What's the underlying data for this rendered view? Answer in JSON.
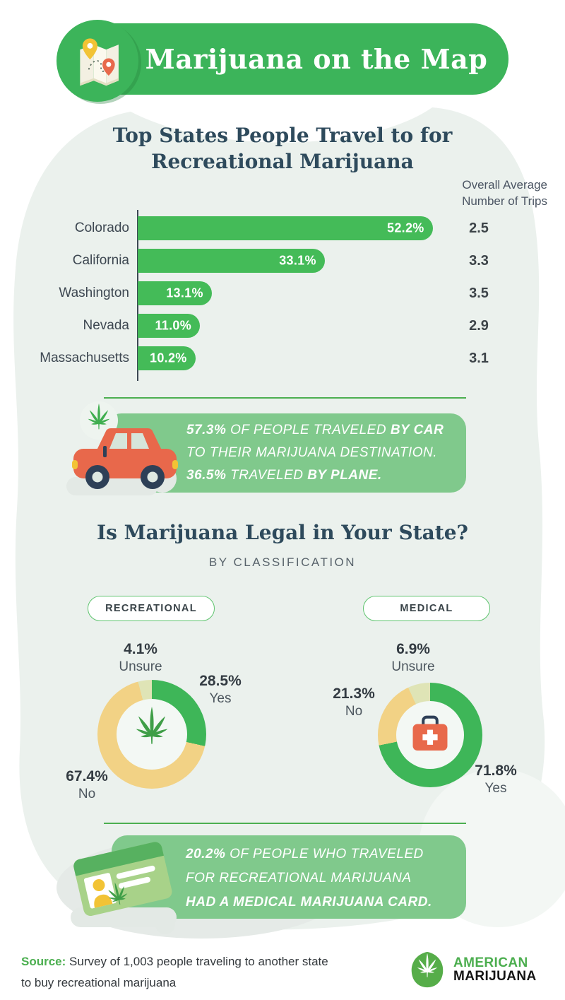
{
  "header": {
    "title": "Marijuana on the Map"
  },
  "travel_chart": {
    "title_lines": [
      "Top States People Travel to for",
      "Recreational Marijuana"
    ],
    "trips_header_lines": [
      "Overall Average",
      "Number of Trips"
    ]
  },
  "chart_data": [
    {
      "type": "bar",
      "title": "Top States People Travel to for Recreational Marijuana",
      "categories": [
        "Colorado",
        "California",
        "Washington",
        "Nevada",
        "Massachusetts"
      ],
      "values": [
        52.2,
        33.1,
        13.1,
        11.0,
        10.2
      ],
      "value_labels": [
        "52.2%",
        "33.1%",
        "13.1%",
        "11.0%",
        "10.2%"
      ],
      "secondary_column": {
        "header": "Overall Average Number of Trips",
        "values": [
          "2.5",
          "3.3",
          "3.5",
          "2.9",
          "3.1"
        ]
      },
      "xlabel": "",
      "ylabel": "",
      "xlim": [
        0,
        55
      ],
      "bar_color": "#44bb58",
      "orientation": "horizontal"
    },
    {
      "type": "pie",
      "title": "RECREATIONAL",
      "subtitle": "Is marijuana legal - recreational",
      "slices": [
        {
          "label": "Yes",
          "value": 28.5,
          "display": "28.5%",
          "color": "#3eb658"
        },
        {
          "label": "No",
          "value": 67.4,
          "display": "67.4%",
          "color": "#f2d285"
        },
        {
          "label": "Unsure",
          "value": 4.1,
          "display": "4.1%",
          "color": "#dfe4b6"
        }
      ],
      "center_icon": "cannabis-leaf",
      "donut": true
    },
    {
      "type": "pie",
      "title": "MEDICAL",
      "subtitle": "Is marijuana legal - medical",
      "slices": [
        {
          "label": "Yes",
          "value": 71.8,
          "display": "71.8%",
          "color": "#3eb658"
        },
        {
          "label": "No",
          "value": 21.3,
          "display": "21.3%",
          "color": "#f2d285"
        },
        {
          "label": "Unsure",
          "value": 6.9,
          "display": "6.9%",
          "color": "#dfe4b6"
        }
      ],
      "center_icon": "first-aid-kit",
      "donut": true
    }
  ],
  "car_callout": {
    "lines": [
      [
        {
          "text": "57.3%",
          "bold": true
        },
        {
          "text": " OF PEOPLE TRAVELED ",
          "bold": false
        },
        {
          "text": "BY CAR",
          "bold": true
        }
      ],
      [
        {
          "text": "TO THEIR MARIJUANA DESTINATION.",
          "bold": false
        }
      ],
      [
        {
          "text": "36.5%",
          "bold": true
        },
        {
          "text": " TRAVELED ",
          "bold": false
        },
        {
          "text": "BY PLANE.",
          "bold": true
        }
      ]
    ]
  },
  "legal_section": {
    "title": "Is Marijuana Legal in Your State?",
    "subtitle": "BY CLASSIFICATION"
  },
  "card_callout": {
    "lines": [
      [
        {
          "text": "20.2%",
          "bold": true
        },
        {
          "text": " OF PEOPLE WHO TRAVELED",
          "bold": false
        }
      ],
      [
        {
          "text": "FOR RECREATIONAL MARIJUANA",
          "bold": false
        }
      ],
      [
        {
          "text": "HAD A MEDICAL MARIJUANA CARD.",
          "bold": true
        }
      ]
    ]
  },
  "footer": {
    "source_label": "Source:",
    "source_lines": [
      "Survey of 1,003 people traveling to another state",
      "to buy recreational marijuana"
    ],
    "logo_line1": "AMERICAN",
    "logo_line2": "MARIJUANA"
  },
  "colors": {
    "brand_green": "#3cb45a",
    "bar_green": "#44bb58",
    "callout_green": "#80c98c",
    "donut_yellow": "#f2d285",
    "donut_pale": "#dfe4b6",
    "title_navy": "#2e4a5c",
    "background_blob": "#ebf1ed"
  }
}
